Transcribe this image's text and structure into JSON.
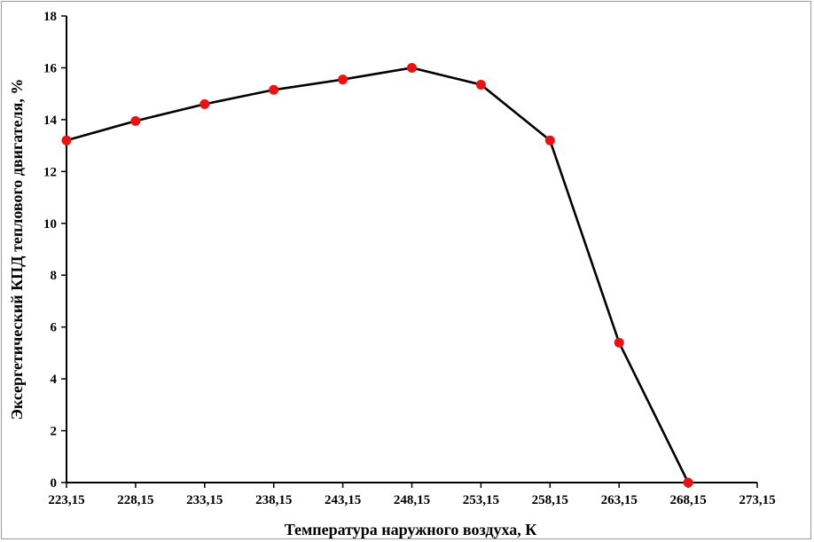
{
  "chart_data": {
    "type": "line",
    "title": "",
    "xlabel": "Температура наружного воздуха, К",
    "ylabel": "Эксергетический КПД теплового двигателя, %",
    "x_ticks": [
      "223,15",
      "228,15",
      "233,15",
      "238,15",
      "243,15",
      "248,15",
      "253,15",
      "258,15",
      "263,15",
      "268,15",
      "273,15"
    ],
    "x_values": [
      223.15,
      228.15,
      233.15,
      238.15,
      243.15,
      248.15,
      253.15,
      258.15,
      263.15,
      268.15,
      273.15
    ],
    "y_ticks": [
      "0",
      "2",
      "4",
      "6",
      "8",
      "10",
      "12",
      "14",
      "16",
      "18"
    ],
    "xlim": [
      223.15,
      273.15
    ],
    "ylim": [
      0,
      18
    ],
    "grid": false,
    "series": [
      {
        "x": [
          223.15,
          228.15,
          233.15,
          238.15,
          243.15,
          248.15,
          253.15,
          258.15,
          263.15,
          268.15
        ],
        "values": [
          13.2,
          13.95,
          14.6,
          15.15,
          15.55,
          16.0,
          15.35,
          13.2,
          5.4,
          0.0
        ],
        "line_color": "#000000",
        "marker_color": "#ee1111"
      }
    ]
  }
}
